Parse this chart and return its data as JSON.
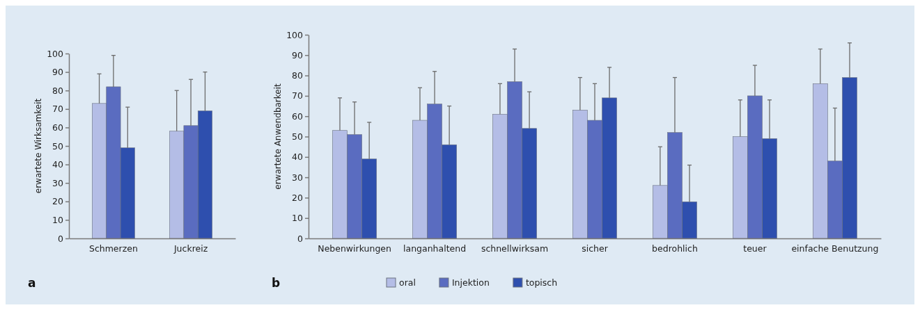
{
  "chart_data": [
    {
      "type": "bar",
      "categories": [
        "Schmerzen",
        "Juckreiz"
      ],
      "ylabel": "erwartete Wirksamkeit",
      "ylim": [
        0,
        100
      ],
      "yticks": [
        0,
        10,
        20,
        30,
        40,
        50,
        60,
        70,
        80,
        90,
        100
      ],
      "legend": false,
      "annotations": [
        "a"
      ],
      "series": [
        {
          "color": "#b4bde6",
          "values": [
            73,
            58
          ],
          "errors": [
            [
              73,
              89
            ],
            [
              58,
              80
            ]
          ]
        },
        {
          "color": "#5a6cc0",
          "values": [
            82,
            61
          ],
          "errors": [
            [
              82,
              99
            ],
            [
              61,
              86
            ]
          ]
        },
        {
          "color": "#2e4fae",
          "values": [
            49,
            69
          ],
          "errors": [
            [
              49,
              71
            ],
            [
              69,
              90
            ]
          ]
        }
      ]
    },
    {
      "type": "bar",
      "categories": [
        "Nebenwirkungen",
        "langanhaltend",
        "schnellwirksam",
        "sicher",
        "bedrohlich",
        "teuer",
        "einfache Benutzung"
      ],
      "ylabel": "erwartete Anwendbarkeit",
      "ylim": [
        0,
        100
      ],
      "yticks": [
        0,
        10,
        20,
        30,
        40,
        50,
        60,
        70,
        80,
        90,
        100
      ],
      "legend": "bottom",
      "annotations": [
        "b"
      ],
      "series": [
        {
          "name": "oral",
          "color": "#b4bde6",
          "values": [
            53,
            58,
            61,
            63,
            26,
            50,
            76
          ],
          "errors": [
            [
              53,
              69
            ],
            [
              58,
              74
            ],
            [
              61,
              76
            ],
            [
              63,
              79
            ],
            [
              26,
              45
            ],
            [
              50,
              68
            ],
            [
              76,
              93
            ]
          ]
        },
        {
          "name": "Injektion",
          "color": "#5a6cc0",
          "values": [
            51,
            66,
            77,
            58,
            52,
            70,
            38
          ],
          "errors": [
            [
              51,
              67
            ],
            [
              66,
              82
            ],
            [
              77,
              93
            ],
            [
              58,
              76
            ],
            [
              52,
              79
            ],
            [
              70,
              85
            ],
            [
              38,
              64
            ]
          ]
        },
        {
          "name": "topisch",
          "color": "#2e4fae",
          "values": [
            39,
            46,
            54,
            69,
            18,
            49,
            79
          ],
          "errors": [
            [
              39,
              57
            ],
            [
              46,
              65
            ],
            [
              54,
              72
            ],
            [
              69,
              84
            ],
            [
              18,
              36
            ],
            [
              49,
              68
            ],
            [
              79,
              96
            ]
          ]
        }
      ]
    }
  ]
}
